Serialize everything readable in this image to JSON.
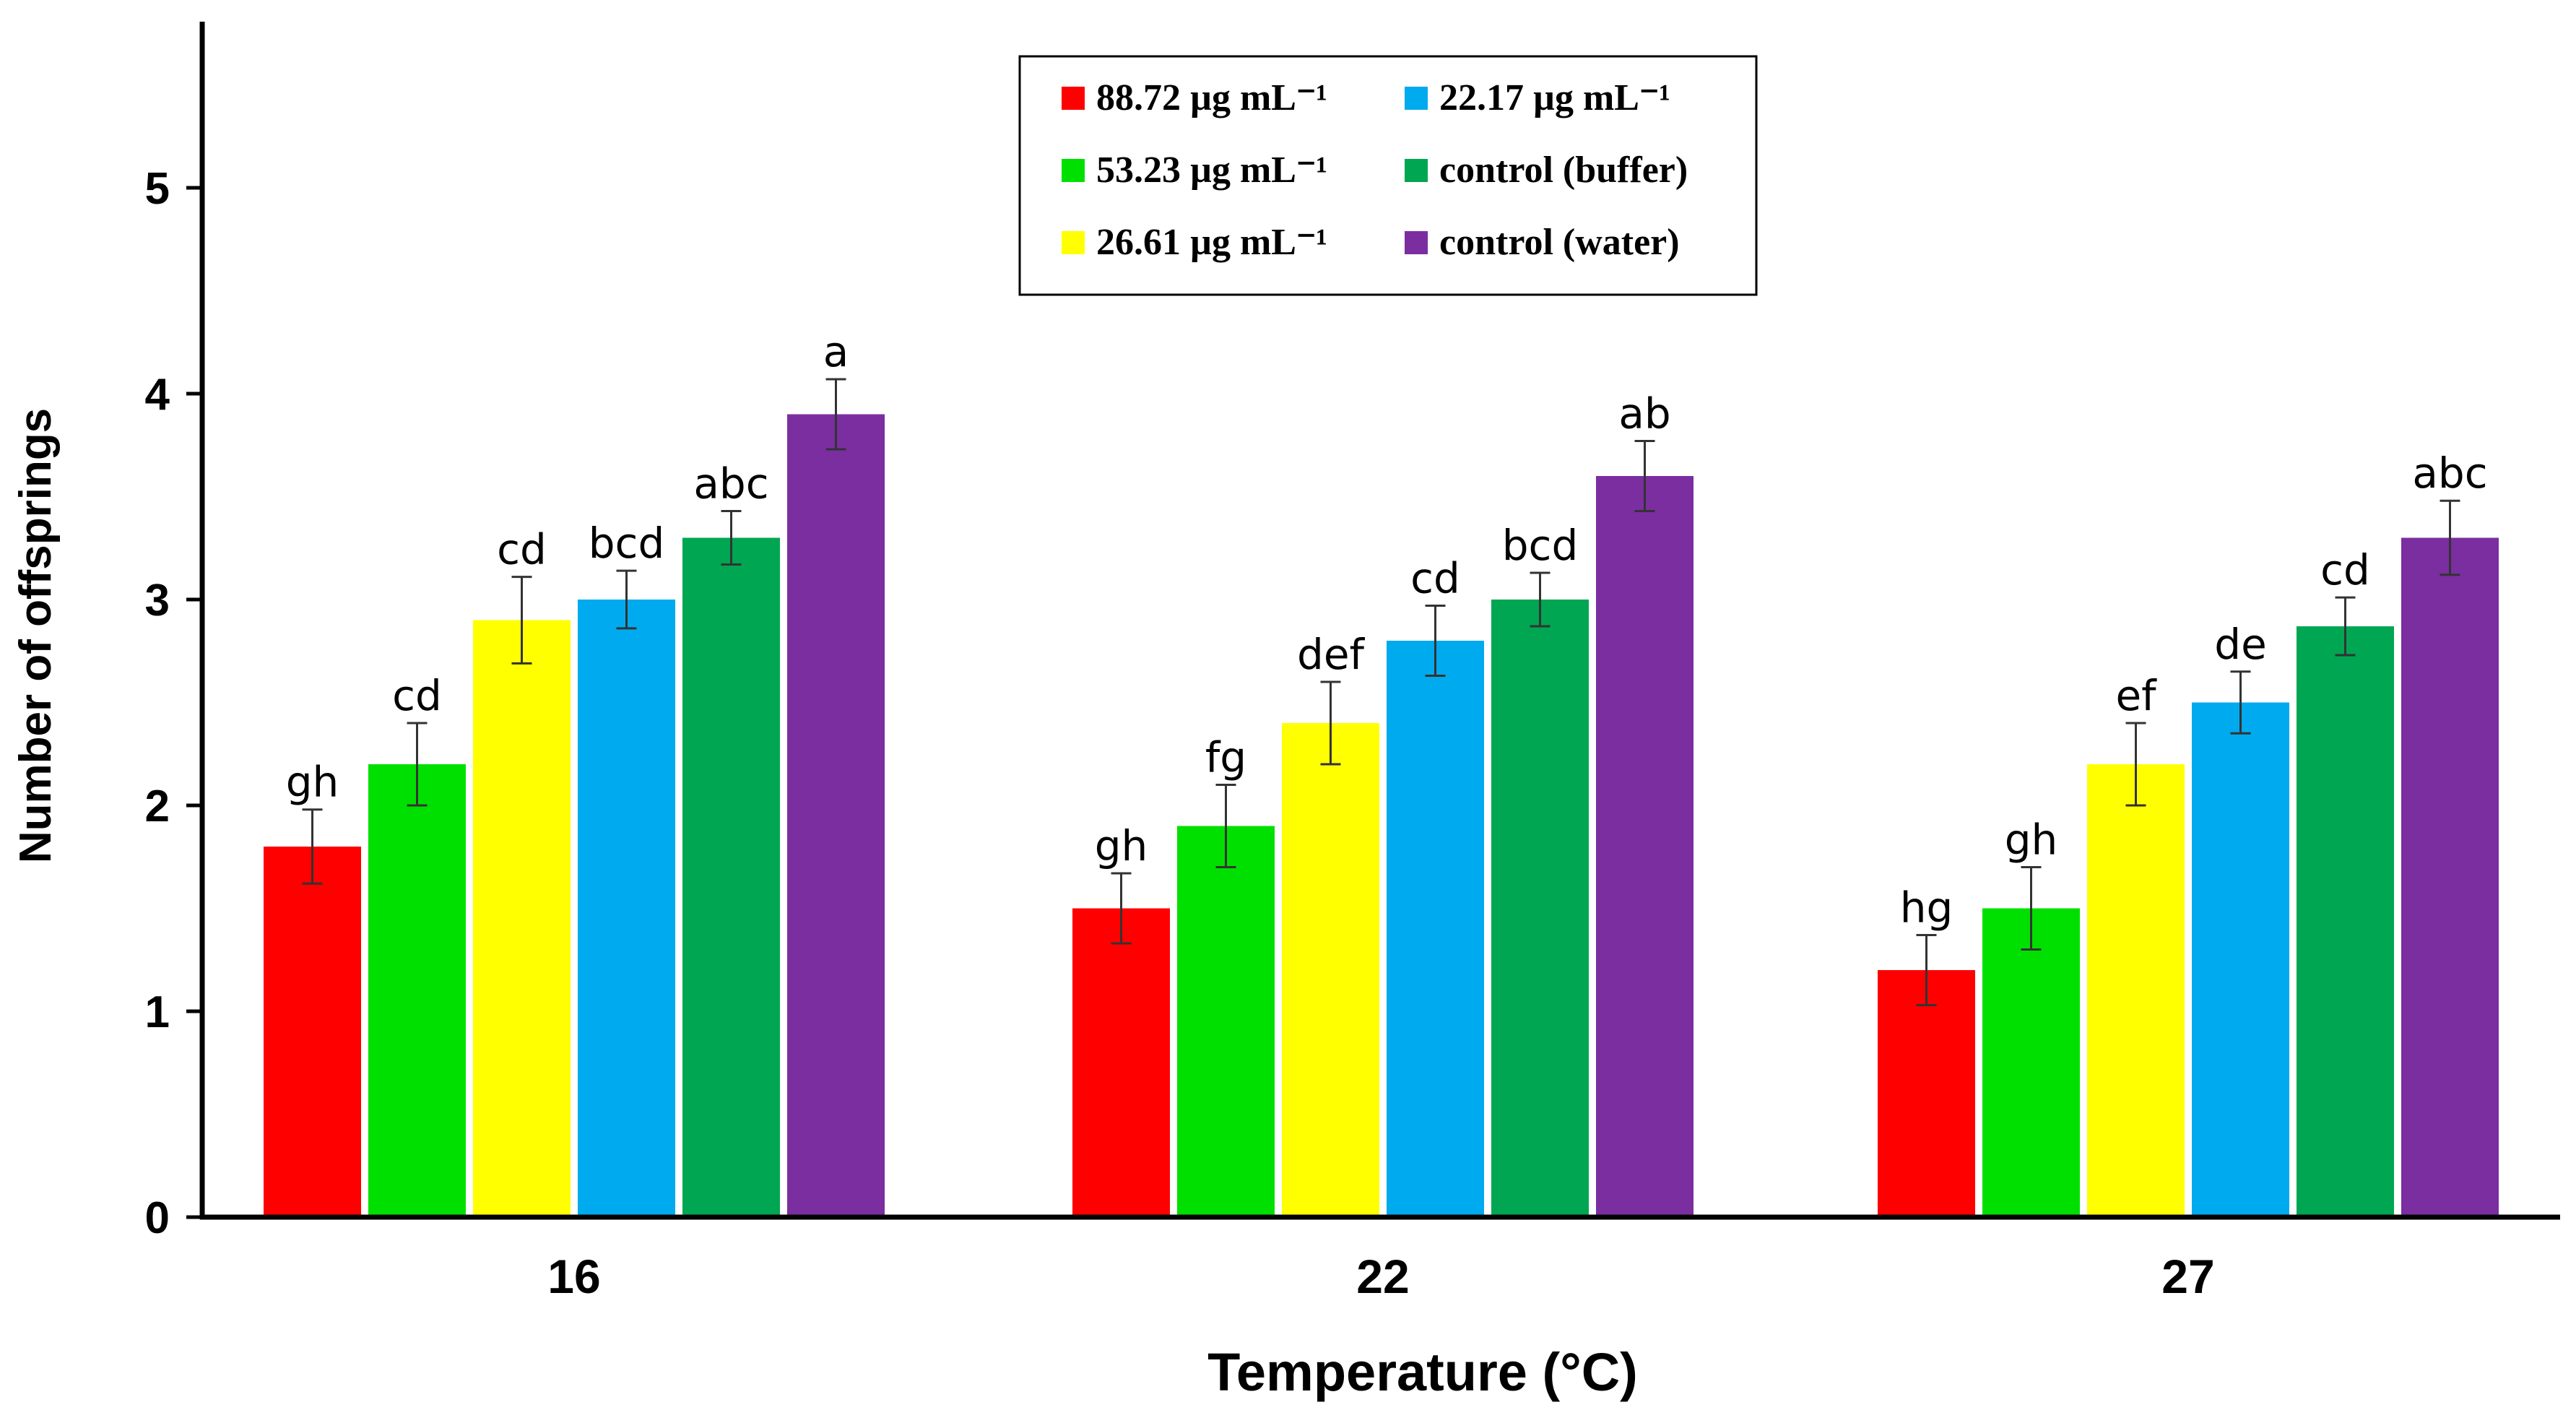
{
  "chart_data": {
    "type": "bar",
    "title": "",
    "xlabel": "Temperature (°C)",
    "ylabel": "Number of offsprings",
    "ylim": [
      0,
      5.8
    ],
    "yticks": [
      0,
      1,
      2,
      3,
      4,
      5
    ],
    "categories": [
      "16",
      "22",
      "27"
    ],
    "grid": false,
    "legend_position": "top-center",
    "series": [
      {
        "name": "88.72 µg mL⁻¹",
        "color": "#ff0000",
        "values": [
          1.8,
          1.5,
          1.2
        ],
        "errors": [
          0.18,
          0.17,
          0.17
        ],
        "labels": [
          "gh",
          "gh",
          "hg"
        ]
      },
      {
        "name": "53.23 µg mL⁻¹",
        "color": "#00e000",
        "values": [
          2.2,
          1.9,
          1.5
        ],
        "errors": [
          0.2,
          0.2,
          0.2
        ],
        "labels": [
          "cd",
          "fg",
          "gh"
        ]
      },
      {
        "name": "26.61 µg mL⁻¹",
        "color": "#ffff00",
        "values": [
          2.9,
          2.4,
          2.2
        ],
        "errors": [
          0.21,
          0.2,
          0.2
        ],
        "labels": [
          "cd",
          "def",
          "ef"
        ]
      },
      {
        "name": "22.17 µg mL⁻¹",
        "color": "#00aaee",
        "values": [
          3.0,
          2.8,
          2.5
        ],
        "errors": [
          0.14,
          0.17,
          0.15
        ],
        "labels": [
          "bcd",
          "cd",
          "de"
        ]
      },
      {
        "name": "control (buffer)",
        "color": "#00a651",
        "values": [
          3.3,
          3.0,
          2.87
        ],
        "errors": [
          0.13,
          0.13,
          0.14
        ],
        "labels": [
          "abc",
          "bcd",
          "cd"
        ]
      },
      {
        "name": "control (water)",
        "color": "#7b2ea0",
        "values": [
          3.9,
          3.6,
          3.3
        ],
        "errors": [
          0.17,
          0.17,
          0.18
        ],
        "labels": [
          "a",
          "ab",
          "abc"
        ]
      }
    ]
  }
}
